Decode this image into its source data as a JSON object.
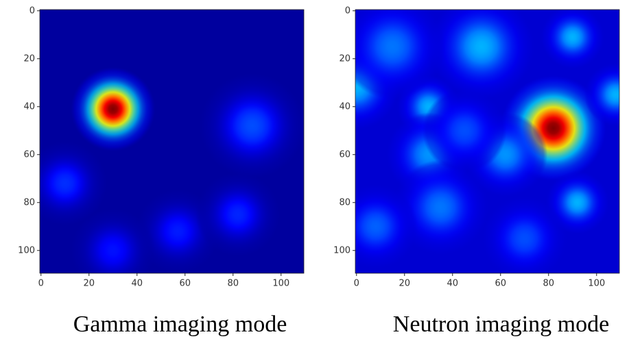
{
  "chart_data": [
    {
      "type": "heatmap",
      "caption": "Gamma imaging mode",
      "colormap": "jet",
      "base": 0.03,
      "xlim": [
        -0.5,
        109.5
      ],
      "ylim": [
        109.5,
        -0.5
      ],
      "xticks": [
        0,
        20,
        40,
        60,
        80,
        100
      ],
      "yticks": [
        0,
        20,
        40,
        60,
        80,
        100
      ],
      "x": [
        30,
        88,
        10,
        57,
        82,
        30
      ],
      "y": [
        41,
        48,
        72,
        92,
        85,
        100
      ],
      "intensity": [
        1.0,
        0.2,
        0.17,
        0.15,
        0.16,
        0.14
      ],
      "radius": [
        8,
        10,
        8,
        8,
        8,
        8
      ]
    },
    {
      "type": "heatmap",
      "caption": "Neutron imaging mode",
      "colormap": "jet",
      "base": 0.08,
      "xlim": [
        -0.5,
        109.5
      ],
      "ylim": [
        109.5,
        -0.5
      ],
      "xticks": [
        0,
        20,
        40,
        60,
        80,
        100
      ],
      "yticks": [
        0,
        20,
        40,
        60,
        80,
        100
      ],
      "x": [
        82,
        52,
        90,
        0,
        30,
        108,
        62,
        30,
        92,
        35,
        8,
        70,
        15,
        45
      ],
      "y": [
        49,
        15,
        11,
        32,
        40,
        35,
        60,
        60,
        80,
        82,
        90,
        95,
        15,
        50
      ],
      "intensity": [
        1.0,
        0.3,
        0.3,
        0.3,
        0.3,
        0.3,
        0.27,
        0.27,
        0.3,
        0.24,
        0.22,
        0.2,
        0.24,
        0.2
      ],
      "radius": [
        10,
        10,
        6,
        8,
        6,
        6,
        8,
        8,
        6,
        9,
        8,
        8,
        10,
        8
      ]
    }
  ]
}
